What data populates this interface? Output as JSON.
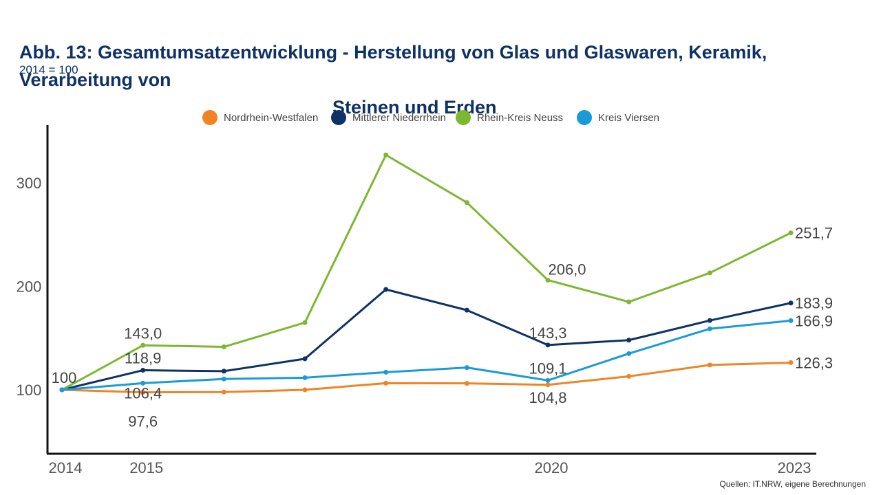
{
  "header": {
    "title_line1": "Abb. 13: Gesamtumsatzentwicklung - Herstellung von Glas und Glaswaren, Keramik, Verarbeitung von",
    "title_line2": "Steinen und Erden",
    "subtitle": "2014 = 100"
  },
  "footer": {
    "source": "Quellen: IT.NRW, eigene Berechnungen"
  },
  "chart_data": {
    "type": "line",
    "x": [
      2014,
      2015,
      2016,
      2017,
      2018,
      2019,
      2020,
      2021,
      2022,
      2023
    ],
    "x_tick_labels": [
      "2014",
      "2015",
      "2020",
      "2023"
    ],
    "x_tick_values": [
      2014,
      2015,
      2020,
      2023
    ],
    "y_ticks": [
      100,
      200,
      300
    ],
    "ylim": [
      40,
      360
    ],
    "legend_position": "top",
    "series": [
      {
        "name": "Nordrhein-Westfalen",
        "color": "#f08424",
        "values": [
          100,
          97.6,
          97.8,
          100,
          106.4,
          106.2,
          104.8,
          113,
          124,
          126.3
        ]
      },
      {
        "name": "Mittlerer Niederrhein",
        "color": "#0e3264",
        "values": [
          100,
          118.9,
          118,
          130,
          197,
          177,
          143.3,
          148,
          167,
          183.9
        ]
      },
      {
        "name": "Rhein-Kreis Neuss",
        "color": "#7cb82f",
        "values": [
          100,
          143.0,
          141.5,
          165,
          327,
          281,
          206.0,
          185,
          213,
          251.7
        ]
      },
      {
        "name": "Kreis Viersen",
        "color": "#1a9bd7",
        "values": [
          100,
          106.4,
          110.5,
          111.7,
          117,
          121.5,
          109.1,
          135,
          159,
          166.9
        ]
      }
    ],
    "data_labels": [
      {
        "text": "100",
        "x": 2014,
        "y": 100,
        "anchor": "mid-above"
      },
      {
        "text": "143,0",
        "x": 2015,
        "y": 143.0,
        "anchor": "above"
      },
      {
        "text": "118,9",
        "x": 2015,
        "y": 118.9,
        "anchor": "above"
      },
      {
        "text": "106,4",
        "x": 2015,
        "y": 106.4,
        "anchor": "below1"
      },
      {
        "text": "97,6",
        "x": 2015,
        "y": 97.6,
        "anchor": "below2"
      },
      {
        "text": "206,0",
        "x": 2020,
        "y": 206.0,
        "anchor": "above-right"
      },
      {
        "text": "143,3",
        "x": 2020,
        "y": 143.3,
        "anchor": "above"
      },
      {
        "text": "109,1",
        "x": 2020,
        "y": 109.1,
        "anchor": "above"
      },
      {
        "text": "104,8",
        "x": 2020,
        "y": 104.8,
        "anchor": "below"
      },
      {
        "text": "251,7",
        "x": 2023,
        "y": 251.7,
        "anchor": "right"
      },
      {
        "text": "183,9",
        "x": 2023,
        "y": 183.9,
        "anchor": "right"
      },
      {
        "text": "166,9",
        "x": 2023,
        "y": 166.9,
        "anchor": "right"
      },
      {
        "text": "126,3",
        "x": 2023,
        "y": 126.3,
        "anchor": "right"
      }
    ]
  }
}
